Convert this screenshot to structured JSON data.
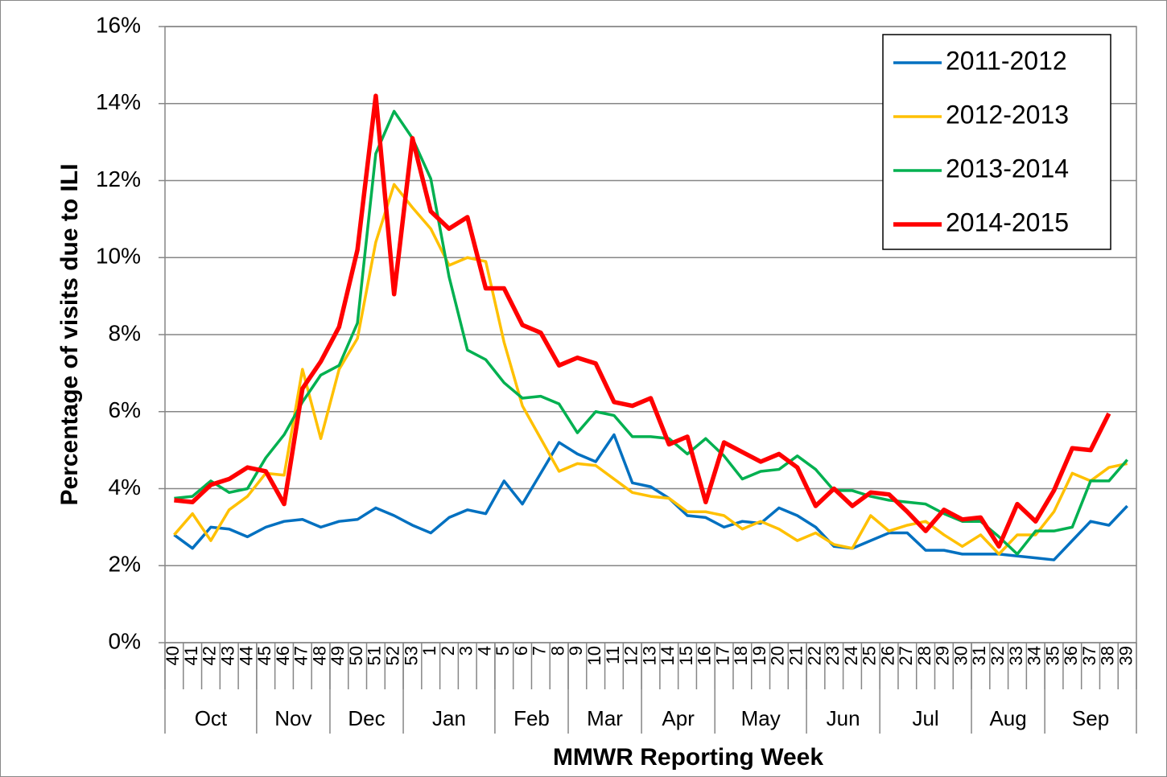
{
  "chart_data": {
    "type": "line",
    "y_label": "Percentage of visits due to ILI",
    "x_label": "MMWR Reporting Week",
    "categories": [
      "40",
      "41",
      "42",
      "43",
      "44",
      "45",
      "46",
      "47",
      "48",
      "49",
      "50",
      "51",
      "52",
      "53",
      "1",
      "2",
      "3",
      "4",
      "5",
      "6",
      "7",
      "8",
      "9",
      "10",
      "11",
      "12",
      "13",
      "14",
      "15",
      "16",
      "17",
      "18",
      "19",
      "20",
      "21",
      "22",
      "23",
      "24",
      "25",
      "26",
      "27",
      "28",
      "29",
      "30",
      "31",
      "32",
      "33",
      "34",
      "35",
      "36",
      "37",
      "38",
      "39"
    ],
    "months": [
      "Oct",
      "Nov",
      "Dec",
      "Jan",
      "Feb",
      "Mar",
      "Apr",
      "May",
      "Jun",
      "Jul",
      "Aug",
      "Sep"
    ],
    "month_spans": [
      5,
      4,
      4,
      5,
      4,
      4,
      4,
      5,
      4,
      5,
      4,
      5
    ],
    "ylim": [
      0,
      16
    ],
    "yticks": [
      {
        "value": 0,
        "label": "0%"
      },
      {
        "value": 2,
        "label": "2%"
      },
      {
        "value": 4,
        "label": "4%"
      },
      {
        "value": 6,
        "label": "6%"
      },
      {
        "value": 8,
        "label": "8%"
      },
      {
        "value": 10,
        "label": "10%"
      },
      {
        "value": 12,
        "label": "12%"
      },
      {
        "value": 14,
        "label": "14%"
      },
      {
        "value": 16,
        "label": "16%"
      }
    ],
    "grid": true,
    "legend": "upper-right",
    "series": [
      {
        "name": "2011-2012",
        "color": "#0070c0",
        "values": [
          2.8,
          2.45,
          3.0,
          2.95,
          2.75,
          3.0,
          3.15,
          3.2,
          3.0,
          3.15,
          3.2,
          3.5,
          3.3,
          3.05,
          2.85,
          3.25,
          3.45,
          3.35,
          4.2,
          3.6,
          4.4,
          5.2,
          4.9,
          4.7,
          5.4,
          4.15,
          4.05,
          3.75,
          3.3,
          3.25,
          3.0,
          3.15,
          3.1,
          3.5,
          3.3,
          3.0,
          2.5,
          2.45,
          2.65,
          2.85,
          2.85,
          2.4,
          2.4,
          2.3,
          2.3,
          2.3,
          2.25,
          2.2,
          2.15,
          2.65,
          3.15,
          3.05,
          3.55
        ]
      },
      {
        "name": "2012-2013",
        "color": "#ffc000",
        "values": [
          2.8,
          3.35,
          2.65,
          3.45,
          3.8,
          4.4,
          4.35,
          7.1,
          5.3,
          7.1,
          7.9,
          10.4,
          11.9,
          11.3,
          10.75,
          9.8,
          10.0,
          9.9,
          7.8,
          6.15,
          5.3,
          4.45,
          4.65,
          4.6,
          4.25,
          3.9,
          3.8,
          3.75,
          3.4,
          3.4,
          3.3,
          2.95,
          3.15,
          2.95,
          2.65,
          2.85,
          2.55,
          2.45,
          3.3,
          2.9,
          3.05,
          3.15,
          2.8,
          2.5,
          2.8,
          2.3,
          2.8,
          2.8,
          3.4,
          4.4,
          4.2,
          4.55,
          4.65
        ]
      },
      {
        "name": "2013-2014",
        "color": "#00b050",
        "values": [
          3.75,
          3.8,
          4.2,
          3.9,
          4.0,
          4.8,
          5.4,
          6.25,
          6.95,
          7.2,
          8.3,
          12.7,
          13.8,
          13.1,
          12.05,
          9.5,
          7.6,
          7.35,
          6.75,
          6.35,
          6.4,
          6.2,
          5.45,
          6.0,
          5.9,
          5.35,
          5.35,
          5.3,
          4.9,
          5.3,
          4.85,
          4.25,
          4.45,
          4.5,
          4.85,
          4.5,
          3.95,
          3.95,
          3.8,
          3.7,
          3.65,
          3.6,
          3.35,
          3.15,
          3.15,
          2.75,
          2.3,
          2.9,
          2.9,
          3.0,
          4.2,
          4.2,
          4.75
        ]
      },
      {
        "name": "2014-2015",
        "color": "#ff0000",
        "values": [
          3.7,
          3.65,
          4.1,
          4.25,
          4.55,
          4.45,
          3.6,
          6.6,
          7.3,
          8.2,
          10.2,
          14.2,
          9.05,
          13.1,
          11.2,
          10.75,
          11.05,
          9.2,
          9.2,
          8.25,
          8.05,
          7.2,
          7.4,
          7.25,
          6.25,
          6.15,
          6.35,
          5.15,
          5.35,
          3.65,
          5.2,
          4.95,
          4.7,
          4.9,
          4.55,
          3.55,
          4.0,
          3.55,
          3.9,
          3.85,
          3.4,
          2.9,
          3.45,
          3.2,
          3.25,
          2.5,
          3.6,
          3.15,
          3.95,
          5.05,
          5.0,
          5.95,
          null
        ]
      }
    ]
  }
}
